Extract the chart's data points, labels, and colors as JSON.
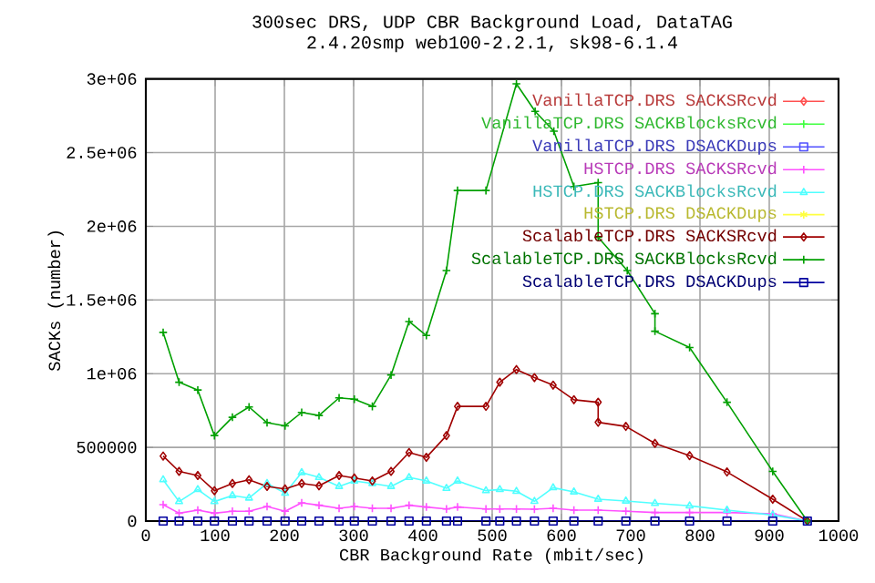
{
  "chart_data": {
    "type": "line",
    "title": "300sec DRS, UDP CBR Background Load, DataTAG",
    "subtitle": "2.4.20smp web100-2.2.1, sk98-6.1.4",
    "xlabel": "CBR Background Rate (mbit/sec)",
    "ylabel": "SACKs (number)",
    "xlim": [
      0,
      1000
    ],
    "xticks": [
      0,
      100,
      200,
      300,
      400,
      500,
      600,
      700,
      800,
      900,
      1000
    ],
    "ylim": [
      0,
      3000000
    ],
    "yticks": [
      0,
      500000,
      {
        "value": 1000000,
        "label": "1e+06"
      },
      {
        "value": 1500000,
        "label": "1.5e+06"
      },
      {
        "value": 2000000,
        "label": "2e+06"
      },
      {
        "value": 2500000,
        "label": "2.5e+06"
      },
      {
        "value": 3000000,
        "label": "3e+06"
      }
    ],
    "grid": true,
    "legend": "top right",
    "line_style": "solid",
    "series": [
      {
        "name": "VanillaTCP.DRS SACKSRcvd",
        "color": "#ff5050",
        "marker": "diamond",
        "values": [
          null
        ]
      },
      {
        "name": "VanillaTCP.DRS SACKBlocksRcvd",
        "color": "#40ff40",
        "marker": "cross",
        "values": [
          null
        ]
      },
      {
        "name": "VanillaTCP.DRS DSACKDups",
        "color": "#5050ff",
        "marker": "square",
        "values": [
          null
        ]
      },
      {
        "name": "HSTCP.DRS SACKSRcvd",
        "color": "#ff50ff",
        "marker": "cross",
        "x": [
          25,
          48,
          75,
          99,
          125,
          149,
          175,
          201,
          225,
          250,
          279,
          301,
          327,
          354,
          380,
          405,
          434,
          450,
          491,
          511,
          535,
          561,
          588,
          618,
          653,
          693,
          735,
          785,
          839,
          905,
          955
        ],
        "values": [
          111000,
          53000,
          74000,
          53000,
          66000,
          66000,
          99000,
          66000,
          123000,
          107000,
          86000,
          99000,
          86000,
          86000,
          107000,
          95000,
          82000,
          95000,
          82000,
          82000,
          82000,
          80000,
          86000,
          74000,
          74000,
          66000,
          58000,
          58000,
          58000,
          49000,
          0
        ]
      },
      {
        "name": "HSTCP.DRS SACKBlocksRcvd",
        "color": "#50ffff",
        "marker": "triangle",
        "x": [
          25,
          48,
          75,
          99,
          125,
          149,
          175,
          201,
          225,
          250,
          279,
          301,
          327,
          354,
          380,
          405,
          434,
          450,
          491,
          511,
          535,
          561,
          588,
          618,
          653,
          693,
          735,
          785,
          839,
          905,
          955
        ],
        "values": [
          280000,
          132000,
          214000,
          132000,
          173000,
          156000,
          255000,
          189000,
          329000,
          296000,
          235000,
          272000,
          255000,
          235000,
          296000,
          272000,
          222000,
          272000,
          206000,
          214000,
          202000,
          134000,
          226000,
          198000,
          148000,
          136000,
          120000,
          103000,
          74000,
          41000,
          0
        ]
      },
      {
        "name": "HSTCP.DRS DSACKDups",
        "color": "#ffff40",
        "marker": "star",
        "values": [
          null
        ]
      },
      {
        "name": "ScalableTCP.DRS SACKSRcvd",
        "color": "#a00000",
        "marker": "diamond",
        "x": [
          25,
          48,
          75,
          99,
          125,
          149,
          175,
          201,
          225,
          250,
          279,
          301,
          327,
          354,
          380,
          405,
          434,
          450,
          491,
          511,
          535,
          561,
          588,
          618,
          653,
          653,
          693,
          735,
          785,
          839,
          905,
          955
        ],
        "values": [
          441000,
          337000,
          309000,
          206000,
          255000,
          280000,
          235000,
          218000,
          255000,
          239000,
          309000,
          292000,
          272000,
          337000,
          465000,
          432000,
          580000,
          778000,
          778000,
          942000,
          1028000,
          973000,
          922000,
          823000,
          806000,
          670000,
          642000,
          527000,
          444000,
          333000,
          148000,
          0
        ]
      },
      {
        "name": "ScalableTCP.DRS SACKBlocksRcvd",
        "color": "#00a000",
        "marker": "cross",
        "x": [
          25,
          48,
          75,
          99,
          125,
          149,
          175,
          201,
          225,
          250,
          279,
          301,
          327,
          354,
          380,
          405,
          434,
          450,
          491,
          535,
          562,
          589,
          618,
          653,
          653,
          695,
          735,
          735,
          785,
          839,
          905,
          955
        ],
        "values": [
          1280000,
          942000,
          889000,
          580000,
          704000,
          774000,
          667000,
          646000,
          737000,
          716000,
          836000,
          827000,
          778000,
          991000,
          1354000,
          1259000,
          1700000,
          2243000,
          2243000,
          2967000,
          2780000,
          2646000,
          2270000,
          2296000,
          1926000,
          1700000,
          1407000,
          1288000,
          1177000,
          806000,
          337000,
          0
        ]
      },
      {
        "name": "ScalableTCP.DRS DSACKDups",
        "color": "#0000a0",
        "marker": "square",
        "x": [
          25,
          48,
          75,
          99,
          125,
          149,
          175,
          201,
          225,
          250,
          279,
          301,
          327,
          354,
          380,
          405,
          434,
          450,
          491,
          511,
          535,
          561,
          588,
          618,
          653,
          693,
          735,
          785,
          839,
          905,
          955
        ],
        "values": [
          0,
          0,
          0,
          0,
          0,
          0,
          0,
          0,
          0,
          0,
          0,
          0,
          0,
          0,
          0,
          0,
          0,
          0,
          0,
          0,
          0,
          0,
          0,
          0,
          0,
          0,
          0,
          0,
          0,
          0,
          0
        ]
      }
    ]
  }
}
